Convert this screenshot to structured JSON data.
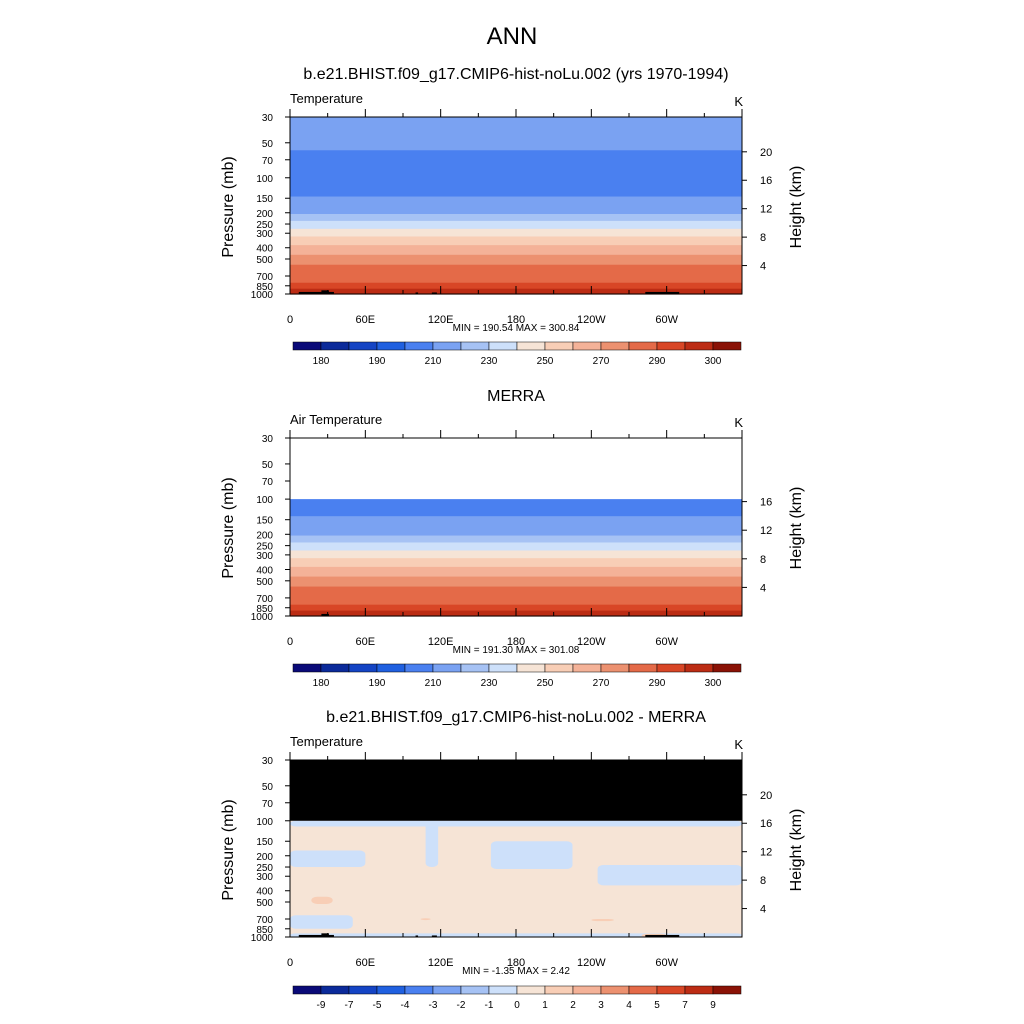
{
  "page": {
    "title": "ANN"
  },
  "colors": {
    "palette": [
      "#0a0a78",
      "#0b2a9a",
      "#1444c4",
      "#2060e0",
      "#4a80f0",
      "#7aa2f2",
      "#a6c2f4",
      "#cde0fa",
      "#f6e4d6",
      "#f8ceb6",
      "#f4b298",
      "#ec9170",
      "#e46a48",
      "#d84626",
      "#bc2c14",
      "#8a1206"
    ],
    "masked": "#000000",
    "axis": "#000000"
  },
  "chart_data": [
    {
      "type": "heatmap",
      "title": "b.e21.BHIST.f09_g17.CMIP6-hist-noLu.002 (yrs 1970-1994)",
      "variable_label": "Temperature",
      "units": "K",
      "ylabel": "Pressure (mb)",
      "ylabel_right": "Height (km)",
      "x_ticks": [
        "0",
        "60E",
        "120E",
        "180",
        "120W",
        "60W"
      ],
      "y_ticks": [
        "30",
        "50",
        "70",
        "100",
        "150",
        "200",
        "250",
        "300",
        "400",
        "500",
        "700",
        "850",
        "1000"
      ],
      "right_ticks": [
        "20",
        "16",
        "12",
        "8",
        "4"
      ],
      "stats": "MIN = 190.54  MAX = 300.84",
      "colorbar_labels": [
        "180",
        "190",
        "210",
        "230",
        "250",
        "270",
        "290",
        "300"
      ],
      "bands": [
        {
          "p_top": 30,
          "p_bottom": 43,
          "value": 217
        },
        {
          "p_top": 43,
          "p_bottom": 58,
          "value": 212
        },
        {
          "p_top": 58,
          "p_bottom": 145,
          "value": 205
        },
        {
          "p_top": 145,
          "p_bottom": 175,
          "value": 212
        },
        {
          "p_top": 175,
          "p_bottom": 205,
          "value": 217
        },
        {
          "p_top": 205,
          "p_bottom": 235,
          "value": 225
        },
        {
          "p_top": 235,
          "p_bottom": 275,
          "value": 235
        },
        {
          "p_top": 275,
          "p_bottom": 320,
          "value": 245
        },
        {
          "p_top": 320,
          "p_bottom": 380,
          "value": 255
        },
        {
          "p_top": 380,
          "p_bottom": 460,
          "value": 265
        },
        {
          "p_top": 460,
          "p_bottom": 560,
          "value": 272
        },
        {
          "p_top": 560,
          "p_bottom": 680,
          "value": 280
        },
        {
          "p_top": 680,
          "p_bottom": 800,
          "value": 285
        },
        {
          "p_top": 800,
          "p_bottom": 900,
          "value": 292
        },
        {
          "p_top": 900,
          "p_bottom": 1000,
          "value": 298
        }
      ],
      "masked_regions": [
        {
          "lon_start": 7,
          "lon_end": 35,
          "p_top": 960
        },
        {
          "lon_start": 25,
          "lon_end": 31,
          "p_top": 930
        },
        {
          "lon_start": 100,
          "lon_end": 102,
          "p_top": 970
        },
        {
          "lon_start": 113,
          "lon_end": 117,
          "p_top": 970
        },
        {
          "lon_start": 283,
          "lon_end": 310,
          "p_top": 960
        }
      ]
    },
    {
      "type": "heatmap",
      "title": "MERRA",
      "variable_label": "Air Temperature",
      "units": "K",
      "ylabel": "Pressure (mb)",
      "ylabel_right": "Height (km)",
      "x_ticks": [
        "0",
        "60E",
        "120E",
        "180",
        "120W",
        "60W"
      ],
      "y_ticks": [
        "30",
        "50",
        "70",
        "100",
        "150",
        "200",
        "250",
        "300",
        "400",
        "500",
        "700",
        "850",
        "1000"
      ],
      "right_ticks": [
        "16",
        "12",
        "8",
        "4"
      ],
      "stats": "MIN = 191.30  MAX = 301.08",
      "colorbar_labels": [
        "180",
        "190",
        "210",
        "230",
        "250",
        "270",
        "290",
        "300"
      ],
      "bands": [
        {
          "p_top": 100,
          "p_bottom": 140,
          "value": 205
        },
        {
          "p_top": 140,
          "p_bottom": 175,
          "value": 212
        },
        {
          "p_top": 175,
          "p_bottom": 205,
          "value": 217
        },
        {
          "p_top": 205,
          "p_bottom": 235,
          "value": 225
        },
        {
          "p_top": 235,
          "p_bottom": 275,
          "value": 235
        },
        {
          "p_top": 275,
          "p_bottom": 320,
          "value": 245
        },
        {
          "p_top": 320,
          "p_bottom": 380,
          "value": 255
        },
        {
          "p_top": 380,
          "p_bottom": 460,
          "value": 265
        },
        {
          "p_top": 460,
          "p_bottom": 560,
          "value": 272
        },
        {
          "p_top": 560,
          "p_bottom": 680,
          "value": 280
        },
        {
          "p_top": 680,
          "p_bottom": 800,
          "value": 285
        },
        {
          "p_top": 800,
          "p_bottom": 900,
          "value": 292
        },
        {
          "p_top": 900,
          "p_bottom": 1000,
          "value": 298
        }
      ],
      "masked_regions": [
        {
          "lon_start": 25,
          "lon_end": 31,
          "p_top": 960
        }
      ]
    },
    {
      "type": "heatmap",
      "title": "b.e21.BHIST.f09_g17.CMIP6-hist-noLu.002 - MERRA",
      "variable_label": "Temperature",
      "units": "K",
      "ylabel": "Pressure (mb)",
      "ylabel_right": "Height (km)",
      "x_ticks": [
        "0",
        "60E",
        "120E",
        "180",
        "120W",
        "60W"
      ],
      "y_ticks": [
        "30",
        "50",
        "70",
        "100",
        "150",
        "200",
        "250",
        "300",
        "400",
        "500",
        "700",
        "850",
        "1000"
      ],
      "right_ticks": [
        "20",
        "16",
        "12",
        "8",
        "4"
      ],
      "stats": "MIN = -1.35  MAX =   2.42",
      "colorbar_labels": [
        "-9",
        "-7",
        "-5",
        "-4",
        "-3",
        "-2",
        "-1",
        "0",
        "1",
        "2",
        "3",
        "4",
        "5",
        "7",
        "9"
      ],
      "bands": [
        {
          "p_top": 100,
          "p_bottom": 1000,
          "value": 0.5
        }
      ],
      "patches": [
        {
          "lon_start": 0,
          "lon_end": 360,
          "p_top": 100,
          "p_bottom": 112,
          "value": -0.5
        },
        {
          "lon_start": 108,
          "lon_end": 118,
          "p_top": 100,
          "p_bottom": 250,
          "value": -0.5
        },
        {
          "lon_start": 0,
          "lon_end": 60,
          "p_top": 180,
          "p_bottom": 250,
          "value": -0.5
        },
        {
          "lon_start": 160,
          "lon_end": 225,
          "p_top": 150,
          "p_bottom": 260,
          "value": -0.5
        },
        {
          "lon_start": 245,
          "lon_end": 360,
          "p_top": 240,
          "p_bottom": 360,
          "value": -0.5
        },
        {
          "lon_start": 0,
          "lon_end": 50,
          "p_top": 650,
          "p_bottom": 850,
          "value": -0.5
        },
        {
          "lon_start": 0,
          "lon_end": 360,
          "p_top": 930,
          "p_bottom": 1000,
          "value": -0.5
        },
        {
          "lon_start": 17,
          "lon_end": 34,
          "p_top": 450,
          "p_bottom": 520,
          "value": 1.5
        },
        {
          "lon_start": 240,
          "lon_end": 258,
          "p_top": 700,
          "p_bottom": 730,
          "value": 1.5
        },
        {
          "lon_start": 104,
          "lon_end": 112,
          "p_top": 690,
          "p_bottom": 715,
          "value": 1.5
        },
        {
          "lon_start": 280,
          "lon_end": 300,
          "p_top": 940,
          "p_bottom": 1000,
          "value": 1.5
        }
      ],
      "masked_regions": [
        {
          "lon_start": 0,
          "lon_end": 360,
          "p_top": 30,
          "p_bottom": 100
        },
        {
          "lon_start": 7,
          "lon_end": 35,
          "p_top": 960
        },
        {
          "lon_start": 25,
          "lon_end": 31,
          "p_top": 930
        },
        {
          "lon_start": 100,
          "lon_end": 102,
          "p_top": 970
        },
        {
          "lon_start": 113,
          "lon_end": 117,
          "p_top": 970
        },
        {
          "lon_start": 283,
          "lon_end": 310,
          "p_top": 960
        }
      ]
    }
  ]
}
